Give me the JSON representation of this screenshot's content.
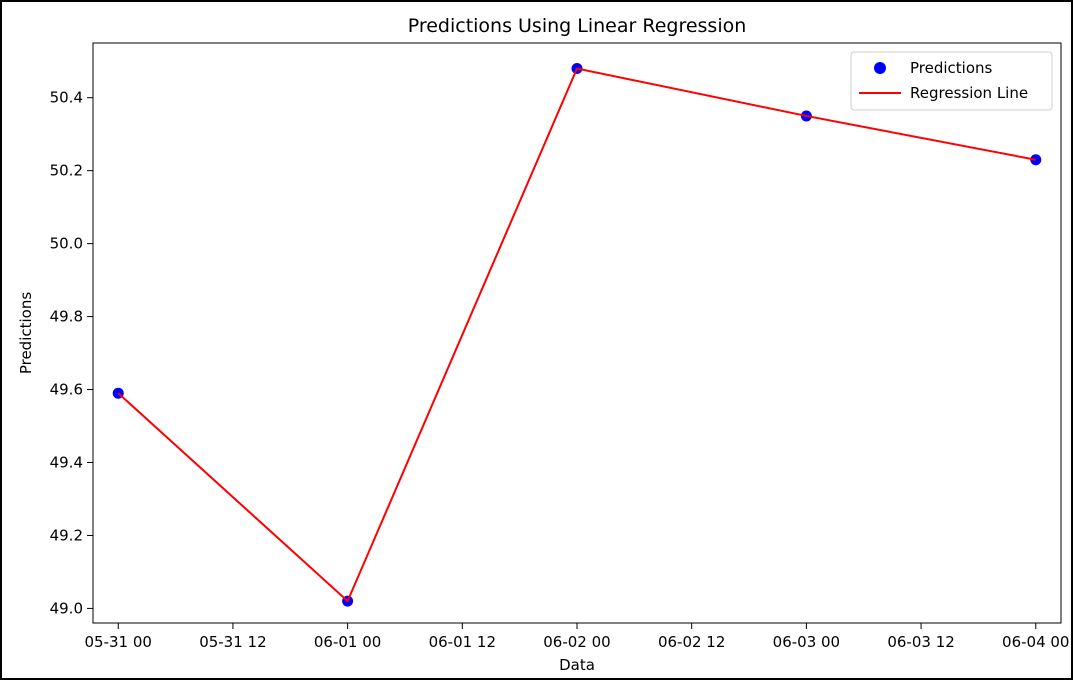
{
  "chart_data": {
    "type": "line",
    "title": "Predictions Using Linear Regression",
    "xlabel": "Data",
    "ylabel": "Predictions",
    "x": [
      "2023-05-31",
      "2023-06-01",
      "2023-06-02",
      "2023-06-03",
      "2023-06-04"
    ],
    "series": [
      {
        "name": "Predictions",
        "kind": "scatter",
        "color": "#0000ff",
        "values": [
          49.59,
          49.02,
          50.48,
          50.35,
          50.23
        ]
      },
      {
        "name": "Regression Line",
        "kind": "line",
        "color": "#ff0000",
        "values": [
          49.59,
          49.02,
          50.48,
          50.35,
          50.23
        ]
      }
    ],
    "xticks": [
      "05-31 00",
      "05-31 12",
      "06-01 00",
      "06-01 12",
      "06-02 00",
      "06-02 12",
      "06-03 00",
      "06-03 12",
      "06-04 00"
    ],
    "yticks": [
      "49.0",
      "49.2",
      "49.4",
      "49.6",
      "49.8",
      "50.0",
      "50.2",
      "50.4"
    ],
    "xlim_days": [
      -0.11,
      4.11
    ],
    "ylim": [
      48.96,
      50.55
    ],
    "grid": false,
    "legend_position": "top-right"
  }
}
